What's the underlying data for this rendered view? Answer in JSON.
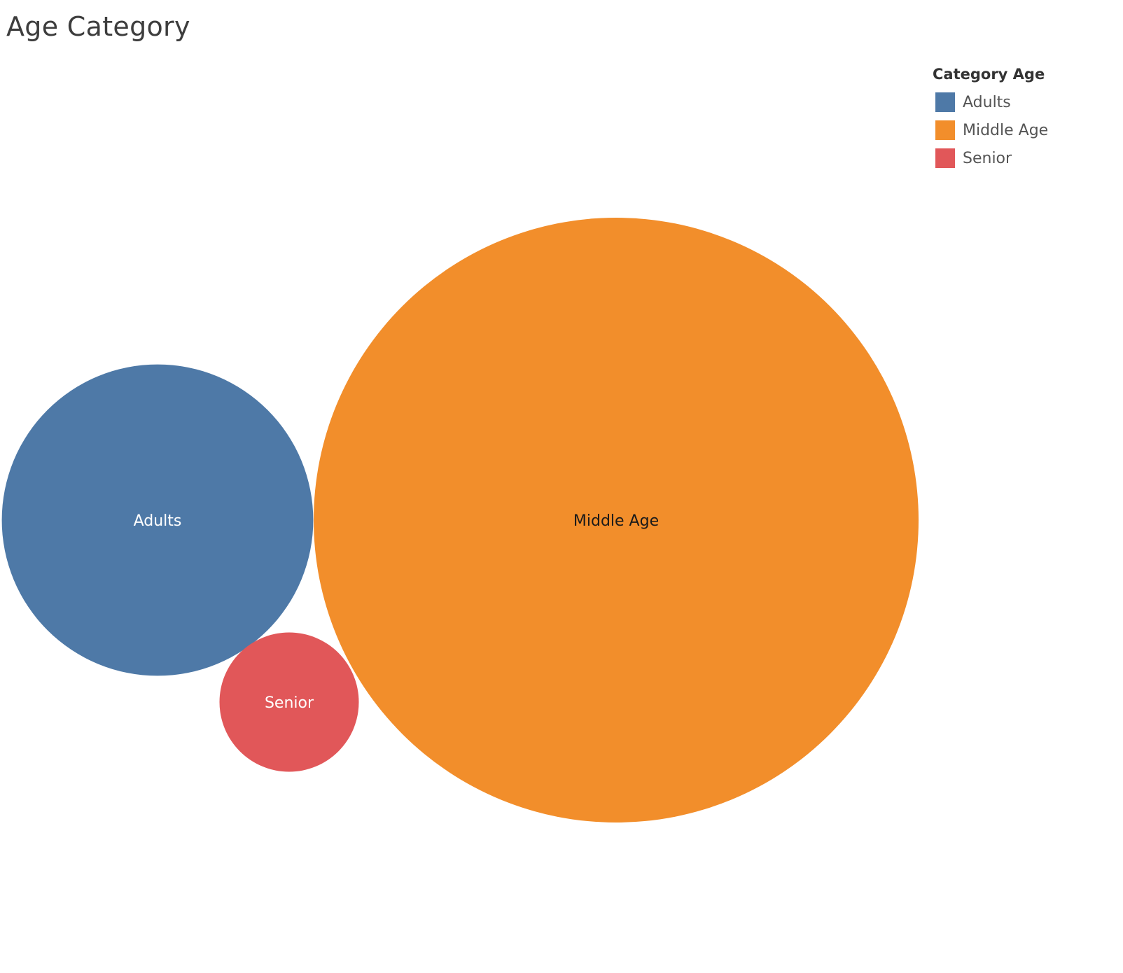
{
  "chart_data": {
    "type": "packed-bubble",
    "title": "Age Category",
    "legend": {
      "title": "Category Age",
      "placement": "top-right",
      "items": [
        {
          "label": "Adults",
          "color": "#4e79a7"
        },
        {
          "label": "Middle Age",
          "color": "#f28e2b"
        },
        {
          "label": "Senior",
          "color": "#e15759"
        }
      ]
    },
    "bubbles": [
      {
        "label": "Adults",
        "relative_size": 0.265,
        "color": "#4e79a7",
        "label_color": "#ffffff"
      },
      {
        "label": "Middle Age",
        "relative_size": 1.0,
        "color": "#f28e2b",
        "label_color": "#1a1a1a"
      },
      {
        "label": "Senior",
        "relative_size": 0.053,
        "color": "#e15759",
        "label_color": "#ffffff"
      }
    ]
  }
}
